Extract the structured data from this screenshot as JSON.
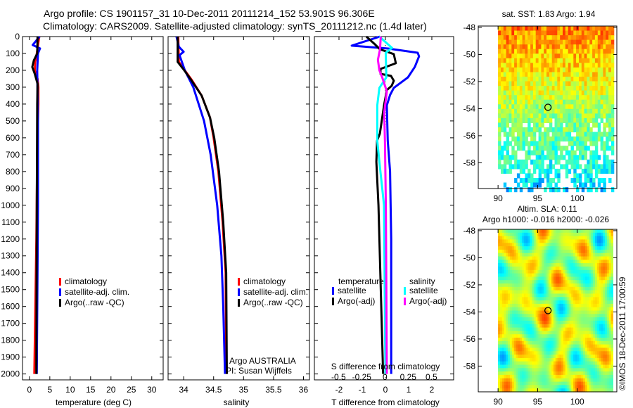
{
  "title": {
    "line1": "Argo profile: CS 1901157_31 10-Dec-2011 20111214_152 53.901S 96.306E",
    "line2": "Climatology: CARS2009. Satellite-adjusted climatology: synTS_20111212.nc (1.4d later)"
  },
  "copyright": "©IMOS 18-Dec-2011 17:00:59",
  "colors": {
    "climatology": "#ff0000",
    "satellite": "#0000ff",
    "argo": "#000000",
    "sal_satellite": "#00ffff",
    "sal_argo": "#ff00ff"
  },
  "chart_data": [
    {
      "type": "line",
      "id": "temp",
      "xlabel": "temperature (deg C)",
      "xlim": [
        -1.7,
        32.8
      ],
      "ylim": [
        0,
        2035
      ],
      "xticks": [
        0,
        5,
        10,
        15,
        20,
        25,
        30
      ],
      "yticks": [
        0,
        100,
        200,
        300,
        400,
        500,
        600,
        700,
        800,
        900,
        1000,
        1100,
        1200,
        1300,
        1400,
        1500,
        1600,
        1700,
        1800,
        1900,
        2000
      ],
      "legend": [
        "climatology",
        "satellite-adj. clim.",
        "Argo(..raw -QC)"
      ],
      "series": [
        {
          "name": "climatology",
          "color": "#ff0000",
          "depth": [
            0,
            100,
            150,
            200,
            250,
            300,
            400,
            700,
            1200,
            2000
          ],
          "values": [
            2.4,
            1.8,
            1.4,
            1.3,
            2.0,
            2.2,
            2.2,
            1.9,
            1.7,
            1.2
          ]
        },
        {
          "name": "satellite-adj. clim.",
          "color": "#0000ff",
          "depth": [
            0,
            50,
            70,
            100,
            200,
            500,
            1000,
            2000
          ],
          "values": [
            2.5,
            0.8,
            2.6,
            2.1,
            1.9,
            2.1,
            2.1,
            1.8
          ]
        },
        {
          "name": "Argo(..raw -QC)",
          "color": "#000000",
          "depth": [
            0,
            100,
            140,
            180,
            220,
            280,
            400,
            1000,
            2000
          ],
          "values": [
            2.0,
            1.9,
            1.1,
            0.7,
            1.3,
            2.0,
            1.9,
            1.8,
            1.7
          ]
        }
      ]
    },
    {
      "type": "line",
      "id": "sal",
      "xlabel": "salinity",
      "xlim": [
        33.74,
        36.1
      ],
      "ylim": [
        0,
        2035
      ],
      "xticks": [
        34,
        34.5,
        35,
        35.5,
        36
      ],
      "legend": [
        "climatology",
        "satellite-adj. clim.",
        "Argo(..raw -QC)"
      ],
      "annotation": [
        "Argo AUSTRALIA",
        "PI: Susan Wijffels"
      ],
      "series": [
        {
          "name": "climatology",
          "color": "#ff0000",
          "depth": [
            0,
            150,
            200,
            260,
            350,
            480,
            600,
            800,
            1100,
            1400,
            2000
          ],
          "values": [
            33.91,
            33.92,
            34.02,
            34.14,
            34.3,
            34.44,
            34.5,
            34.58,
            34.65,
            34.7,
            34.71
          ]
        },
        {
          "name": "satellite-adj. clim.",
          "color": "#0000ff",
          "depth": [
            0,
            60,
            90,
            110,
            200,
            300,
            500,
            700,
            1000,
            1300,
            1600,
            2000
          ],
          "values": [
            33.88,
            33.92,
            34.0,
            33.93,
            34.02,
            34.16,
            34.34,
            34.45,
            34.56,
            34.63,
            34.66,
            34.69
          ]
        },
        {
          "name": "Argo(..raw -QC)",
          "color": "#000000",
          "depth": [
            0,
            150,
            200,
            260,
            350,
            480,
            600,
            800,
            1100,
            1400,
            2000
          ],
          "values": [
            33.9,
            33.9,
            34.01,
            34.13,
            34.3,
            34.44,
            34.51,
            34.59,
            34.66,
            34.71,
            34.72
          ]
        }
      ]
    },
    {
      "type": "line",
      "id": "diff",
      "xlabel": "T difference from climatology",
      "xlabel_top": "S difference from climatology",
      "xlim": [
        -3.06,
        2.94
      ],
      "xticks": [
        -2,
        -1,
        0,
        1,
        2
      ],
      "xlim_s": [
        -0.76,
        0.74
      ],
      "xticks_s": [
        -0.5,
        -0.25,
        0,
        0.25,
        0.5
      ],
      "xticklabels_s": [
        "-0.5",
        "-0.25",
        "0",
        "0.25",
        "0.5"
      ],
      "legend_headers": [
        "temperature",
        "salinity"
      ],
      "legend": [
        "satellite",
        "Argo(-adj)",
        "satellite",
        "Argo(-adj)"
      ],
      "series": [
        {
          "name": "T satellite",
          "axis": "T",
          "color": "#0000ff",
          "depth": [
            0,
            54,
            71,
            96,
            117,
            179,
            242,
            304,
            346,
            408,
            617,
            800,
            1200,
            2000
          ],
          "values": [
            -0.24,
            -1.45,
            0.12,
            1.39,
            1.45,
            1.27,
            0.97,
            0.36,
            0.2,
            0.06,
            0.1,
            0.2,
            0.25,
            0.25
          ]
        },
        {
          "name": "T Argo(-adj)",
          "axis": "T",
          "color": "#000000",
          "depth": [
            0,
            42,
            75,
            104,
            158,
            192,
            221,
            233,
            262,
            292,
            317,
            408,
            575,
            617,
            742,
            1000,
            1500,
            2000
          ],
          "values": [
            -0.82,
            -0.48,
            -0.24,
            0.36,
            0.45,
            -0.21,
            -0.21,
            0.24,
            0.36,
            0.27,
            0.06,
            -0.06,
            -0.24,
            -0.36,
            -0.39,
            -0.3,
            -0.2,
            -0.1
          ]
        },
        {
          "name": "S satellite",
          "axis": "S",
          "color": "#00ffff",
          "depth": [
            0,
            67,
            96,
            242,
            304,
            408,
            617,
            742,
            1000,
            2000
          ],
          "values": [
            -0.06,
            0.076,
            0.008,
            0.015,
            -0.06,
            -0.083,
            -0.083,
            -0.06,
            -0.01,
            0.005
          ]
        },
        {
          "name": "S Argo(-adj)",
          "axis": "S",
          "color": "#ff00ff",
          "depth": [
            0,
            75,
            138,
            200,
            242,
            325,
            450,
            617,
            1000,
            2000
          ],
          "values": [
            -0.045,
            -0.053,
            -0.076,
            -0.06,
            -0.03,
            0.02,
            -0.008,
            0,
            0.01,
            0.02
          ]
        }
      ]
    },
    {
      "type": "heatmap",
      "id": "sst",
      "title": "sat. SST: 1.83 Argo: 1.94",
      "xlim": [
        87.5,
        105
      ],
      "ylim": [
        -59.9,
        -47.9
      ],
      "xticks": [
        90,
        95,
        100
      ],
      "yticks": [
        -48,
        -50,
        -52,
        -54,
        -56,
        -58
      ],
      "marker": {
        "lon": 96.306,
        "lat": -53.901
      }
    },
    {
      "type": "heatmap",
      "id": "sla",
      "title": "Altim. SLA: 0.11",
      "subtitle": "Argo h1000: -0.016 h2000: -0.026",
      "xlim": [
        87.5,
        105
      ],
      "ylim": [
        -59.9,
        -47.9
      ],
      "xticks": [
        90,
        95,
        100
      ],
      "yticks": [
        -48,
        -50,
        -52,
        -54,
        -56,
        -58
      ],
      "marker": {
        "lon": 96.306,
        "lat": -53.901
      }
    }
  ]
}
